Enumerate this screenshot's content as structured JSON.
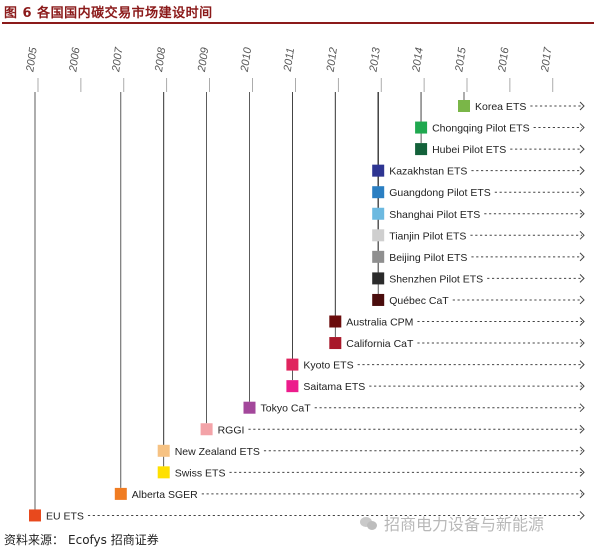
{
  "header": {
    "title": "图 6  各国国内碳交易市场建设时间"
  },
  "footer": {
    "source_label": "资料来源：",
    "source_value": "Ecofys  招商证券",
    "watermark": "招商电力设备与新能源"
  },
  "chart_data": {
    "type": "timeline",
    "years": [
      "2005",
      "2006",
      "2007",
      "2008",
      "2009",
      "2010",
      "2011",
      "2012",
      "2013",
      "2014",
      "2015",
      "2016",
      "2017"
    ],
    "events": [
      {
        "label": "Korea ETS",
        "year": 2015,
        "color": "#7ab648"
      },
      {
        "label": "Chongqing Pilot ETS",
        "year": 2014,
        "color": "#1fa84f"
      },
      {
        "label": "Hubei Pilot ETS",
        "year": 2014,
        "color": "#13613a"
      },
      {
        "label": "Kazakhstan ETS",
        "year": 2013,
        "color": "#2e3592"
      },
      {
        "label": "Guangdong Pilot ETS",
        "year": 2013,
        "color": "#2b7fc2"
      },
      {
        "label": "Shanghai Pilot ETS",
        "year": 2013,
        "color": "#6cb9e0"
      },
      {
        "label": "Tianjin Pilot ETS",
        "year": 2013,
        "color": "#cfcfcf"
      },
      {
        "label": "Beijing Pilot ETS",
        "year": 2013,
        "color": "#8f8f8f"
      },
      {
        "label": "Shenzhen Pilot ETS",
        "year": 2013,
        "color": "#2b2b2b"
      },
      {
        "label": "Québec CaT",
        "year": 2013,
        "color": "#4a0d0d"
      },
      {
        "label": "Australia CPM",
        "year": 2012,
        "color": "#6b0c0c"
      },
      {
        "label": "California CaT",
        "year": 2012,
        "color": "#a8182a"
      },
      {
        "label": "Kyoto ETS",
        "year": 2011,
        "color": "#e0245e"
      },
      {
        "label": "Saitama ETS",
        "year": 2011,
        "color": "#ec1c8c"
      },
      {
        "label": "Tokyo CaT",
        "year": 2010,
        "color": "#a3479b"
      },
      {
        "label": "RGGI",
        "year": 2009,
        "color": "#f3a3a8"
      },
      {
        "label": "New Zealand ETS",
        "year": 2008,
        "color": "#f6c283"
      },
      {
        "label": "Swiss ETS",
        "year": 2008,
        "color": "#ffe000"
      },
      {
        "label": "Alberta SGER",
        "year": 2007,
        "color": "#f07c22"
      },
      {
        "label": "EU ETS",
        "year": 2005,
        "color": "#e8491d"
      }
    ]
  }
}
